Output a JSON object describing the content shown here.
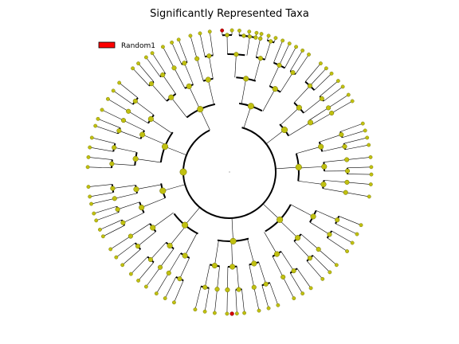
{
  "title": "Significantly Represented Taxa",
  "legend": [
    {
      "label": "Random1",
      "color": "#ff0000"
    }
  ],
  "colors": {
    "node_fill": "#c0c010",
    "highlight_fill": "#d40000",
    "line": "#000000"
  }
}
